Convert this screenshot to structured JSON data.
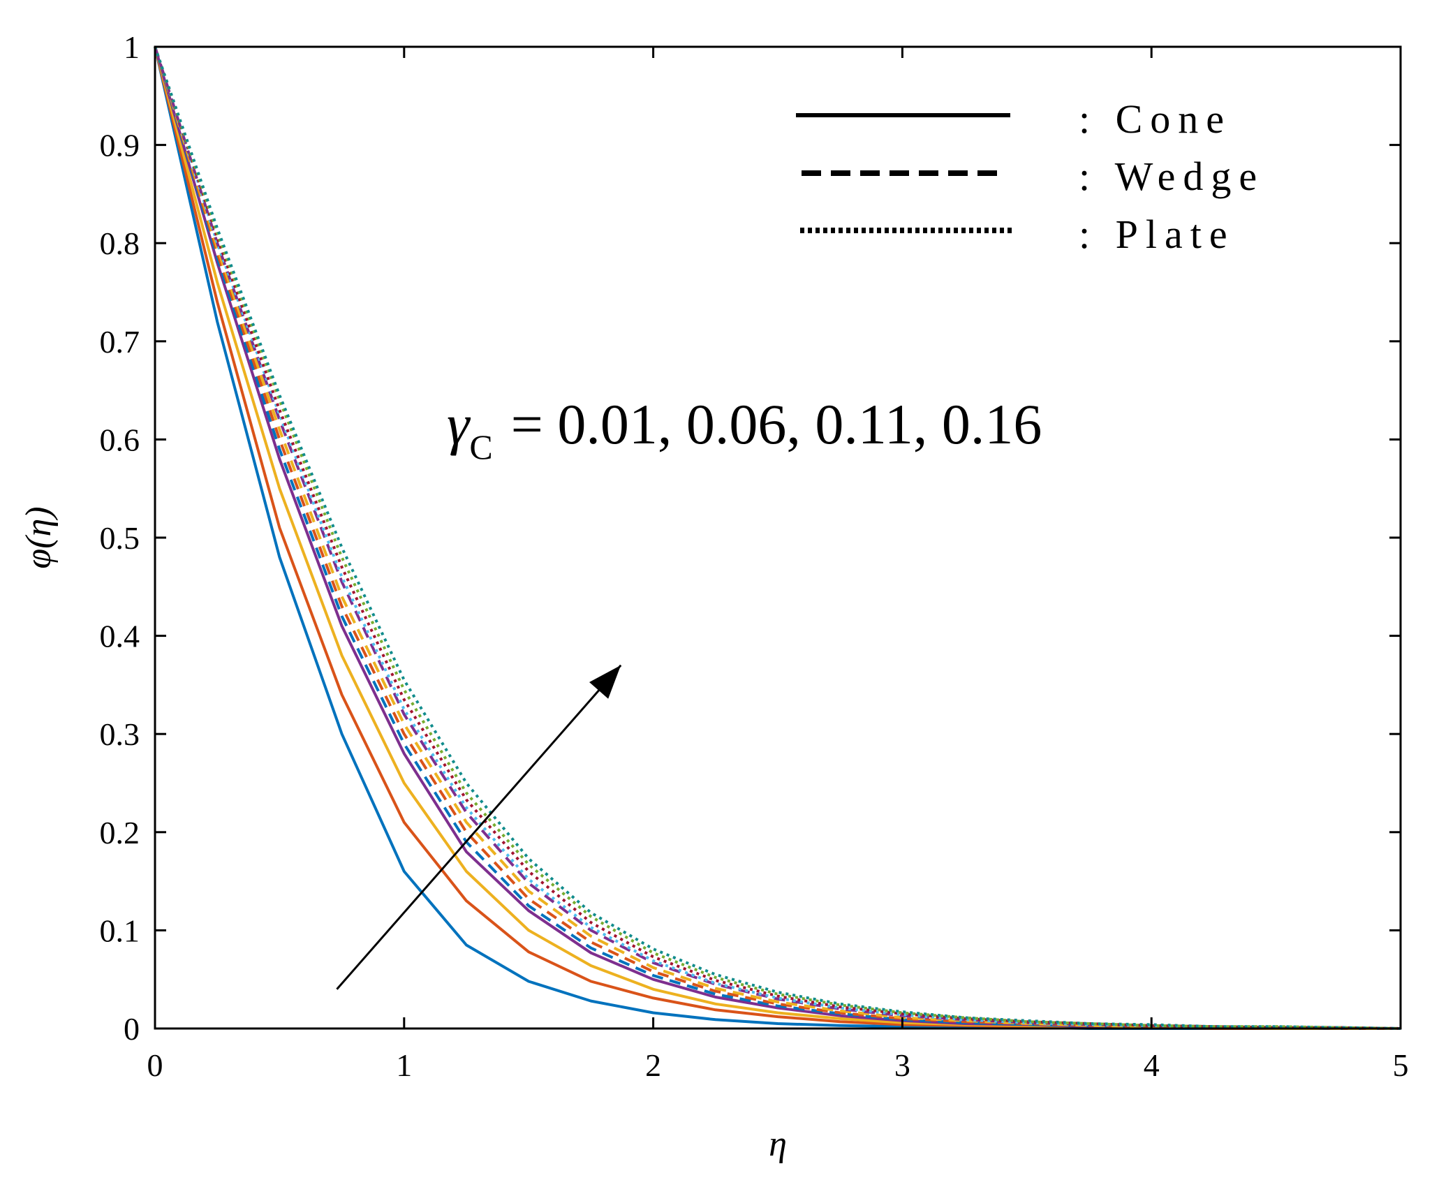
{
  "chart_data": {
    "type": "line",
    "title": "",
    "xlabel": "η",
    "ylabel": "φ(η)",
    "xlim": [
      0,
      5
    ],
    "ylim": [
      0,
      1
    ],
    "xticks": [
      "0",
      "1",
      "2",
      "3",
      "4",
      "5"
    ],
    "yticks": [
      "0",
      "0.1",
      "0.2",
      "0.3",
      "0.4",
      "0.5",
      "0.6",
      "0.7",
      "0.8",
      "0.9",
      "1"
    ],
    "grid": false,
    "legend_position": "top-right",
    "legend": [
      {
        "label": ": Cone",
        "style": "solid"
      },
      {
        "label": ": Wedge",
        "style": "dashed"
      },
      {
        "label": ": Plate",
        "style": "dotted"
      }
    ],
    "annotation": {
      "symbol": "γ",
      "subscript": "C",
      "text": "= 0.01, 0.06, 0.11, 0.16",
      "arrow_from": [
        0.73,
        0.04
      ],
      "arrow_to": [
        1.87,
        0.37
      ]
    },
    "colors": [
      "#0072BD",
      "#D95319",
      "#EDB120",
      "#7E2F8E"
    ],
    "x": [
      0,
      0.25,
      0.5,
      0.75,
      1,
      1.25,
      1.5,
      1.75,
      2,
      2.25,
      2.5,
      2.75,
      3,
      3.25,
      3.5,
      3.75,
      4,
      4.25,
      4.5,
      4.75,
      5
    ],
    "series": [
      {
        "geometry": "Cone",
        "gamma_c": 0.01,
        "color": "#0072BD",
        "style": "solid",
        "values": [
          1,
          0.72,
          0.48,
          0.3,
          0.16,
          0.085,
          0.048,
          0.028,
          0.016,
          0.009,
          0.005,
          0.003,
          0.002,
          0.001,
          0.001,
          0,
          0,
          0,
          0,
          0,
          0
        ]
      },
      {
        "geometry": "Cone",
        "gamma_c": 0.06,
        "color": "#D95319",
        "style": "solid",
        "values": [
          1,
          0.74,
          0.51,
          0.34,
          0.21,
          0.13,
          0.078,
          0.048,
          0.031,
          0.019,
          0.012,
          0.007,
          0.004,
          0.003,
          0.002,
          0.001,
          0.001,
          0,
          0,
          0,
          0
        ]
      },
      {
        "geometry": "Cone",
        "gamma_c": 0.11,
        "color": "#EDB120",
        "style": "solid",
        "values": [
          1,
          0.76,
          0.55,
          0.38,
          0.25,
          0.16,
          0.1,
          0.064,
          0.04,
          0.025,
          0.016,
          0.01,
          0.006,
          0.004,
          0.003,
          0.002,
          0.001,
          0.001,
          0,
          0,
          0
        ]
      },
      {
        "geometry": "Cone",
        "gamma_c": 0.16,
        "color": "#7E2F8E",
        "style": "solid",
        "values": [
          1,
          0.78,
          0.58,
          0.41,
          0.28,
          0.18,
          0.12,
          0.077,
          0.05,
          0.032,
          0.021,
          0.013,
          0.008,
          0.005,
          0.004,
          0.002,
          0.002,
          0.001,
          0.001,
          0,
          0
        ]
      },
      {
        "geometry": "Wedge",
        "gamma_c": 0.01,
        "color": "#0072BD",
        "style": "dashed",
        "values": [
          1,
          0.785,
          0.59,
          0.42,
          0.29,
          0.19,
          0.125,
          0.082,
          0.054,
          0.035,
          0.023,
          0.015,
          0.009,
          0.006,
          0.004,
          0.003,
          0.002,
          0.001,
          0.001,
          0,
          0
        ]
      },
      {
        "geometry": "Wedge",
        "gamma_c": 0.06,
        "color": "#D95319",
        "style": "dashed",
        "values": [
          1,
          0.79,
          0.6,
          0.43,
          0.3,
          0.2,
          0.132,
          0.088,
          0.058,
          0.038,
          0.025,
          0.016,
          0.01,
          0.007,
          0.005,
          0.003,
          0.002,
          0.001,
          0.001,
          0,
          0
        ]
      },
      {
        "geometry": "Wedge",
        "gamma_c": 0.11,
        "color": "#EDB120",
        "style": "dashed",
        "values": [
          1,
          0.795,
          0.61,
          0.44,
          0.31,
          0.21,
          0.14,
          0.094,
          0.062,
          0.041,
          0.027,
          0.018,
          0.011,
          0.008,
          0.005,
          0.003,
          0.002,
          0.001,
          0.001,
          0,
          0
        ]
      },
      {
        "geometry": "Wedge",
        "gamma_c": 0.16,
        "color": "#7E2F8E",
        "style": "dashed",
        "values": [
          1,
          0.8,
          0.62,
          0.455,
          0.32,
          0.22,
          0.148,
          0.1,
          0.067,
          0.045,
          0.03,
          0.02,
          0.013,
          0.009,
          0.006,
          0.004,
          0.003,
          0.002,
          0.001,
          0.001,
          0
        ]
      },
      {
        "geometry": "Plate",
        "gamma_c": 0.01,
        "color": "#4DBEEE",
        "style": "dotted",
        "values": [
          1,
          0.8,
          0.625,
          0.46,
          0.325,
          0.225,
          0.152,
          0.103,
          0.069,
          0.046,
          0.031,
          0.021,
          0.014,
          0.009,
          0.006,
          0.004,
          0.003,
          0.002,
          0.001,
          0.001,
          0
        ]
      },
      {
        "geometry": "Plate",
        "gamma_c": 0.06,
        "color": "#A2142F",
        "style": "dotted",
        "values": [
          1,
          0.805,
          0.63,
          0.47,
          0.335,
          0.233,
          0.16,
          0.108,
          0.073,
          0.049,
          0.033,
          0.022,
          0.015,
          0.01,
          0.007,
          0.005,
          0.003,
          0.002,
          0.001,
          0.001,
          0
        ]
      },
      {
        "geometry": "Plate",
        "gamma_c": 0.11,
        "color": "#77AC30",
        "style": "dotted",
        "values": [
          1,
          0.81,
          0.64,
          0.48,
          0.345,
          0.24,
          0.167,
          0.114,
          0.077,
          0.052,
          0.035,
          0.024,
          0.016,
          0.011,
          0.007,
          0.005,
          0.003,
          0.002,
          0.002,
          0.001,
          0
        ]
      },
      {
        "geometry": "Plate",
        "gamma_c": 0.16,
        "color": "#118C8C",
        "style": "dotted",
        "values": [
          1,
          0.815,
          0.645,
          0.49,
          0.355,
          0.25,
          0.173,
          0.118,
          0.081,
          0.055,
          0.037,
          0.025,
          0.017,
          0.011,
          0.008,
          0.005,
          0.004,
          0.002,
          0.002,
          0.001,
          0
        ]
      }
    ]
  }
}
